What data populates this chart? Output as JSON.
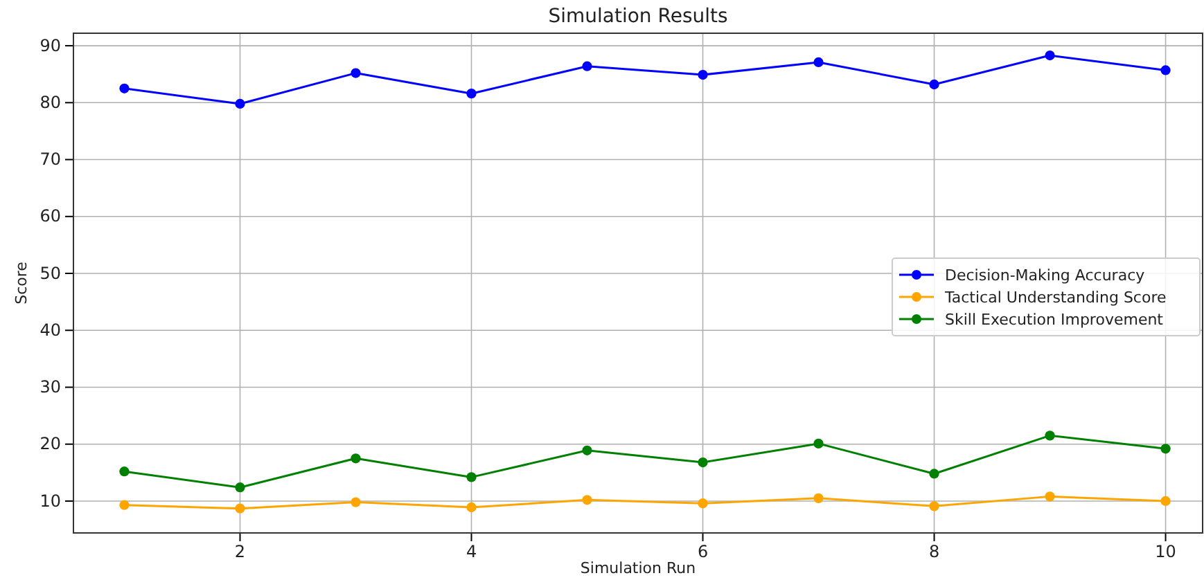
{
  "chart_data": {
    "type": "line",
    "title": "Simulation Results",
    "xlabel": "Simulation Run",
    "ylabel": "Score",
    "x": [
      1,
      2,
      3,
      4,
      5,
      6,
      7,
      8,
      9,
      10
    ],
    "series": [
      {
        "name": "Decision-Making Accuracy",
        "color": "#0000ff",
        "values": [
          82.5,
          79.8,
          85.2,
          81.6,
          86.4,
          84.9,
          87.1,
          83.2,
          88.3,
          85.7
        ]
      },
      {
        "name": "Tactical Understanding Score",
        "color": "#ffa500",
        "values": [
          9.3,
          8.7,
          9.8,
          8.9,
          10.2,
          9.6,
          10.5,
          9.1,
          10.8,
          10.0
        ]
      },
      {
        "name": "Skill Execution Improvement",
        "color": "#008000",
        "values": [
          15.2,
          12.4,
          17.5,
          14.2,
          18.9,
          16.8,
          20.1,
          14.8,
          21.5,
          19.2
        ]
      }
    ],
    "xlim": [
      0.56,
      10.32
    ],
    "xticks": [
      2,
      4,
      6,
      8,
      10
    ],
    "ylim": [
      4.4,
      92.2
    ],
    "yticks": [
      10,
      20,
      30,
      40,
      50,
      60,
      70,
      80,
      90
    ],
    "grid": true,
    "legend": "right",
    "marker": "circle",
    "line_style": "solid"
  }
}
